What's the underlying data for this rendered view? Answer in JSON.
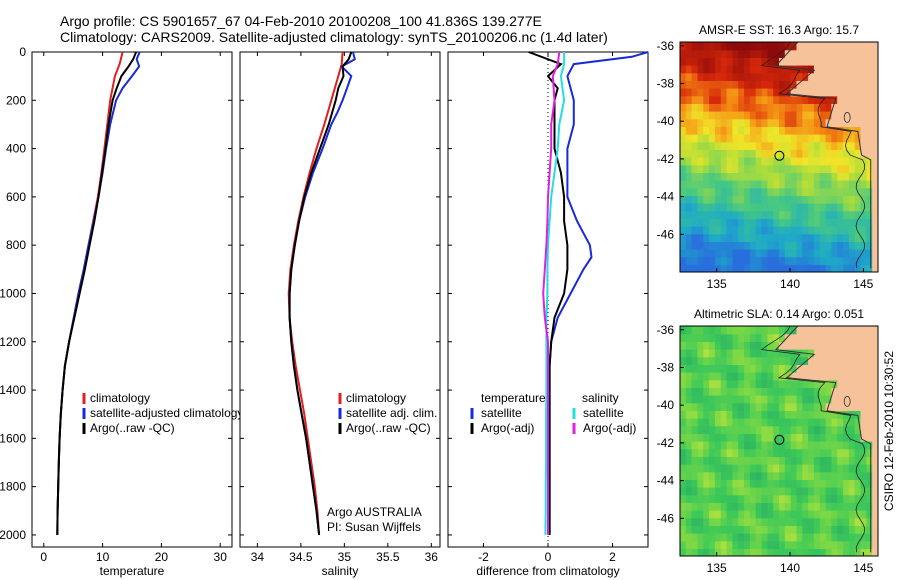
{
  "header": {
    "line1": "Argo profile: CS 5901657_67 04-Feb-2010 20100208_100 41.836S 139.277E",
    "line2": "Climatology: CARS2009. Satellite-adjusted climatology: synTS_20100206.nc (1.4d later)"
  },
  "colors": {
    "climatology": "#e02020",
    "satellite": "#1a2ad8",
    "argo": "#000000",
    "sal_satellite": "#22e0e0",
    "sal_argo": "#e020e0",
    "land": "#f6c29a"
  },
  "chart_data": [
    {
      "type": "line",
      "id": "temperature",
      "xlabel": "temperature",
      "ylabel": "",
      "xlim": [
        -2,
        32
      ],
      "ylim": [
        2050,
        0
      ],
      "x_ticks": [
        "0",
        "10",
        "20",
        "30"
      ],
      "y_ticks": [
        "0",
        "200",
        "400",
        "600",
        "800",
        "1000",
        "1200",
        "1400",
        "1600",
        "1800",
        "2000"
      ],
      "legend": [
        "climatology",
        "satellite-adjusted climatology",
        "Argo(..raw -QC)"
      ],
      "series": [
        {
          "name": "climatology",
          "color": "#e02020",
          "depth": [
            0,
            50,
            100,
            200,
            300,
            400,
            500,
            600,
            700,
            800,
            900,
            1000,
            1100,
            1200,
            1300,
            1400,
            1500,
            1600,
            1700,
            1800,
            1900,
            2000
          ],
          "values": [
            13.4,
            12.9,
            12.1,
            11.3,
            10.8,
            10.3,
            9.8,
            9.2,
            8.4,
            7.6,
            6.8,
            5.9,
            5.1,
            4.3,
            3.6,
            3.2,
            2.9,
            2.7,
            2.55,
            2.45,
            2.35,
            2.3
          ]
        },
        {
          "name": "satellite-adjusted climatology",
          "color": "#1a2ad8",
          "depth": [
            0,
            30,
            60,
            100,
            150,
            200,
            300,
            400,
            500,
            600,
            700,
            800,
            900,
            1000,
            1100,
            1200,
            1300,
            1400,
            1500,
            1600,
            1700,
            1800,
            1900,
            2000
          ],
          "values": [
            16.3,
            15.8,
            16.2,
            15.0,
            13.4,
            12.3,
            11.3,
            10.6,
            10.0,
            9.3,
            8.5,
            7.6,
            6.8,
            5.9,
            5.1,
            4.3,
            3.6,
            3.2,
            2.9,
            2.7,
            2.55,
            2.45,
            2.35,
            2.3
          ]
        },
        {
          "name": "Argo(..raw -QC)",
          "color": "#000000",
          "depth": [
            0,
            30,
            60,
            100,
            150,
            200,
            300,
            400,
            500,
            600,
            700,
            800,
            900,
            1000,
            1100,
            1200,
            1300,
            1400,
            1500,
            1600,
            1700,
            1800,
            1900,
            2000
          ],
          "values": [
            15.7,
            15.2,
            14.4,
            13.2,
            12.4,
            11.7,
            11.0,
            10.5,
            9.9,
            9.3,
            8.6,
            7.8,
            7.0,
            6.1,
            5.2,
            4.3,
            3.6,
            3.2,
            2.9,
            2.7,
            2.55,
            2.45,
            2.35,
            2.3
          ]
        }
      ]
    },
    {
      "type": "line",
      "id": "salinity",
      "xlabel": "salinity",
      "ylabel": "",
      "xlim": [
        33.8,
        36.1
      ],
      "ylim": [
        2050,
        0
      ],
      "x_ticks": [
        "34",
        "34.5",
        "35",
        "35.5",
        "36"
      ],
      "legend": [
        "climatology",
        "satellite adj. clim.",
        "Argo(..raw -QC)"
      ],
      "annotation": [
        "Argo AUSTRALIA",
        "PI: Susan Wijffels"
      ],
      "series": [
        {
          "name": "climatology",
          "color": "#e02020",
          "depth": [
            0,
            50,
            100,
            200,
            300,
            400,
            500,
            600,
            700,
            800,
            900,
            1000,
            1100,
            1200,
            1300,
            1400,
            1500,
            1600,
            1700,
            1800,
            1900,
            2000
          ],
          "values": [
            34.98,
            34.97,
            34.93,
            34.85,
            34.77,
            34.68,
            34.6,
            34.53,
            34.47,
            34.42,
            34.38,
            34.36,
            34.37,
            34.4,
            34.44,
            34.49,
            34.54,
            34.58,
            34.62,
            34.66,
            34.69,
            34.71
          ]
        },
        {
          "name": "satellite adj. clim.",
          "color": "#1a2ad8",
          "depth": [
            0,
            30,
            60,
            100,
            150,
            200,
            250,
            300,
            400,
            500,
            600,
            700,
            800,
            900,
            1000,
            1100,
            1200,
            1300,
            1400,
            1500,
            1600,
            1700,
            1800,
            1900,
            2000
          ],
          "values": [
            35.1,
            35.12,
            34.97,
            35.08,
            35.03,
            34.98,
            34.92,
            34.85,
            34.75,
            34.64,
            34.55,
            34.48,
            34.43,
            34.39,
            34.37,
            34.37,
            34.39,
            34.42,
            34.46,
            34.51,
            34.56,
            34.6,
            34.64,
            34.68,
            34.71
          ]
        },
        {
          "name": "Argo(..raw -QC)",
          "color": "#000000",
          "depth": [
            0,
            30,
            60,
            100,
            150,
            200,
            300,
            400,
            500,
            600,
            700,
            800,
            900,
            1000,
            1100,
            1200,
            1300,
            1400,
            1500,
            1600,
            1700,
            1800,
            1900,
            2000
          ],
          "values": [
            35.08,
            35.05,
            34.98,
            34.99,
            34.93,
            34.9,
            34.82,
            34.72,
            34.62,
            34.54,
            34.48,
            34.43,
            34.39,
            34.37,
            34.37,
            34.39,
            34.42,
            34.46,
            34.51,
            34.56,
            34.6,
            34.64,
            34.68,
            34.71
          ]
        }
      ]
    },
    {
      "type": "line",
      "id": "difference",
      "xlabel": "difference from climatology",
      "ylabel": "",
      "xlim": [
        -3.1,
        3.1
      ],
      "ylim": [
        2050,
        0
      ],
      "x_ticks": [
        "-2",
        "0",
        "2"
      ],
      "legend_titles": [
        "temperature",
        "salinity"
      ],
      "legend": [
        "satellite",
        "Argo(-adj)",
        "satellite",
        "Argo(-adj)"
      ],
      "series": [
        {
          "name": "temperature satellite",
          "color": "#1a2ad8",
          "depth": [
            0,
            20,
            50,
            100,
            150,
            200,
            300,
            400,
            500,
            600,
            700,
            800,
            850,
            900,
            1000,
            1100,
            1200,
            1300,
            1400,
            1500,
            1600,
            1700,
            1800,
            1900,
            2000
          ],
          "values": [
            3.1,
            2.6,
            0.8,
            0.6,
            0.7,
            0.8,
            0.8,
            0.6,
            0.6,
            0.6,
            0.9,
            1.3,
            1.35,
            1.1,
            0.7,
            0.3,
            0.1,
            0.05,
            0.05,
            0.05,
            0.05,
            0.05,
            0.05,
            0.05,
            0.05
          ]
        },
        {
          "name": "temperature Argo(-adj)",
          "color": "#000000",
          "depth": [
            0,
            50,
            100,
            150,
            200,
            300,
            400,
            500,
            600,
            700,
            800,
            900,
            1000,
            1100,
            1200,
            1300,
            1400,
            1500,
            1600,
            1700,
            1800,
            1900,
            2000
          ],
          "values": [
            -0.6,
            0.4,
            0.0,
            0.3,
            0.2,
            0.2,
            0.2,
            0.4,
            0.5,
            0.5,
            0.6,
            0.6,
            0.5,
            0.2,
            0.1,
            0.05,
            0.05,
            0.05,
            0.05,
            0.05,
            0.05,
            0.05,
            0.05
          ]
        },
        {
          "name": "salinity satellite",
          "color": "#22e0e0",
          "depth": [
            0,
            50,
            100,
            200,
            300,
            400,
            500,
            600,
            700,
            800,
            900,
            1000,
            1100,
            1200,
            1300,
            1400,
            1500,
            1600,
            1700,
            1800,
            1900,
            2000
          ],
          "values": [
            0.5,
            0.5,
            0.4,
            0.5,
            0.35,
            0.3,
            0.2,
            0.1,
            0.05,
            0.0,
            -0.02,
            -0.02,
            -0.05,
            -0.05,
            -0.05,
            -0.05,
            -0.06,
            -0.06,
            -0.06,
            -0.07,
            -0.07,
            -0.08
          ]
        },
        {
          "name": "salinity Argo(-adj)",
          "color": "#e020e0",
          "depth": [
            0,
            50,
            100,
            200,
            300,
            400,
            500,
            600,
            700,
            800,
            900,
            1000,
            1100,
            1200,
            1300,
            1400,
            1500,
            1600,
            1700,
            1800,
            1900,
            2000
          ],
          "values": [
            0.35,
            0.3,
            0.15,
            0.2,
            0.1,
            0.1,
            0.05,
            0.0,
            -0.02,
            -0.05,
            -0.1,
            -0.15,
            -0.1,
            0.0,
            0.0,
            0.0,
            0.0,
            0.0,
            0.0,
            0.0,
            0.0,
            0.0
          ]
        }
      ]
    },
    {
      "type": "heatmap",
      "id": "sst-map",
      "title": "AMSR-E SST: 16.3 Argo: 15.7",
      "xlim": [
        132.5,
        146
      ],
      "ylim": [
        -48,
        -35.8
      ],
      "x_ticks": [
        "135",
        "140",
        "145"
      ],
      "y_ticks": [
        "-36",
        "-38",
        "-40",
        "-42",
        "-44",
        "-46"
      ],
      "marker": {
        "lon": 139.277,
        "lat": -41.836
      }
    },
    {
      "type": "heatmap",
      "id": "sla-map",
      "title": "Altimetric SLA: 0.14 Argo: 0.051",
      "xlim": [
        132.5,
        146
      ],
      "ylim": [
        -48,
        -35.8
      ],
      "x_ticks": [
        "135",
        "140",
        "145"
      ],
      "y_ticks": [
        "-36",
        "-38",
        "-40",
        "-42",
        "-44",
        "-46"
      ],
      "marker": {
        "lon": 139.277,
        "lat": -41.836
      },
      "side_label": "CSIRO 12-Feb-2010 10:30:52"
    }
  ]
}
